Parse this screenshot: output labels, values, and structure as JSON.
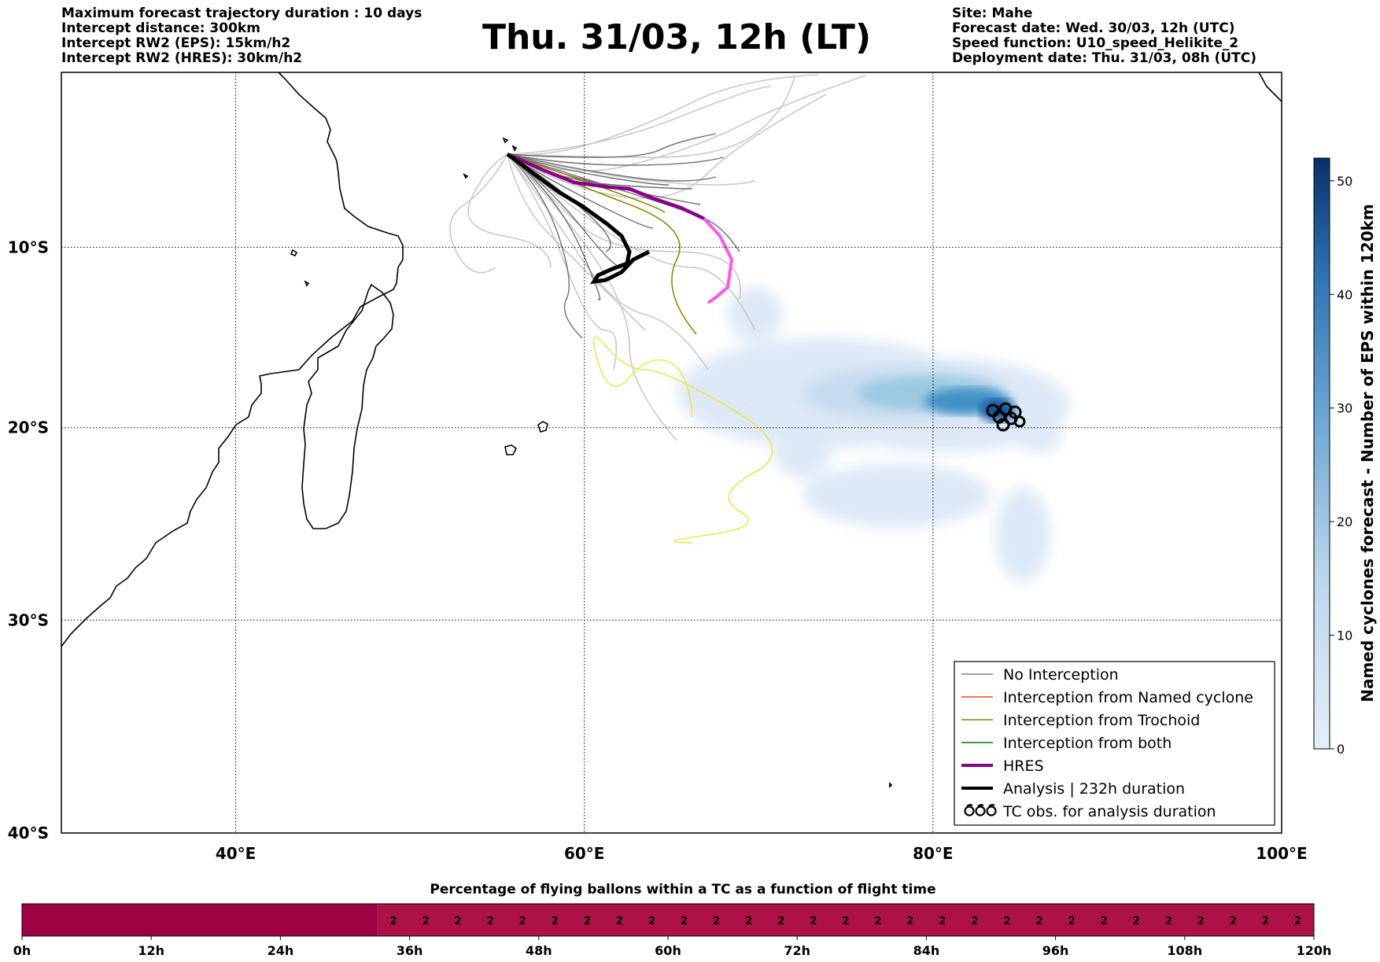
{
  "header_left": {
    "line1": "Maximum forecast trajectory duration : 10 days",
    "line2": "Intercept distance: 300km",
    "line3": "Intercept RW2 (EPS):  15km/h2",
    "line4": "Intercept RW2 (HRES): 30km/h2"
  },
  "title": "Thu. 31/03, 12h (LT)",
  "header_right": {
    "line1": "Site: Mahe",
    "line2": "Forecast date: Wed. 30/03, 12h (UTC)",
    "line3": "Speed function: U10_speed_Helikite_2",
    "line4": "Deployment date: Thu. 31/03, 08h (UTC)"
  },
  "map": {
    "lon_range": [
      30,
      100
    ],
    "lat_range": [
      -40,
      0
    ],
    "lon_ticks": [
      "40°E",
      "60°E",
      "80°E",
      "100°E"
    ],
    "lat_ticks": [
      "10°S",
      "20°S",
      "30°S",
      "40°S"
    ],
    "gridlines": "dotted"
  },
  "legend": {
    "position": "bottom-right",
    "items": [
      {
        "label": "No Interception",
        "color": "#808080"
      },
      {
        "label": "Interception from Named cyclone",
        "color": "#ff4500"
      },
      {
        "label": "Interception from Trochoid",
        "color": "#808000"
      },
      {
        "label": "Interception from both",
        "color": "#008000"
      },
      {
        "label": "HRES",
        "color": "#8b008b"
      },
      {
        "label": "Analysis | 232h duration",
        "color": "#000000"
      },
      {
        "label": "TC obs. for analysis duration",
        "color": "#000000",
        "symbol": "cyclone-icon"
      }
    ]
  },
  "colorbar": {
    "label": "Named cyclones forecast - Number of EPS within 120km",
    "ticks": [
      "0",
      "10",
      "20",
      "30",
      "40",
      "50"
    ],
    "range": [
      0,
      52
    ],
    "colors": [
      "#e4eef9",
      "#08306b"
    ]
  },
  "strip": {
    "title": "Percentage of flying ballons within a TC as a function of flight time",
    "ticks": [
      "0h",
      "12h",
      "24h",
      "36h",
      "48h",
      "60h",
      "72h",
      "84h",
      "96h",
      "108h",
      "120h"
    ],
    "empty_color": "#9e0142",
    "filled_color": "#ac1248",
    "value_label": "2",
    "filled_from_hour": 33,
    "cells_count": 29
  }
}
